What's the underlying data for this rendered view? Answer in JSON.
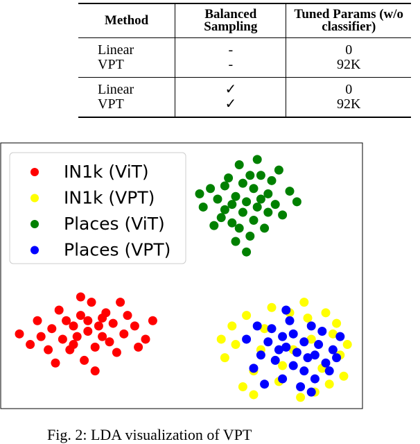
{
  "table": {
    "header": [
      "Method",
      "Balanced Sampling",
      "Tuned Params (w/o classifier)"
    ],
    "rows": [
      [
        "Linear",
        "-",
        "0"
      ],
      [
        "VPT",
        "-",
        "92K"
      ],
      [
        "Linear",
        "✓",
        "0"
      ],
      [
        "VPT",
        "✓",
        "92K"
      ]
    ]
  },
  "chart_data": {
    "type": "scatter",
    "xlim": [
      0,
      100
    ],
    "ylim": [
      0,
      100
    ],
    "legend": "upper left",
    "series": [
      {
        "name": "IN1k (ViT)",
        "color": "#ff0000",
        "x": [
          24,
          20,
          28,
          17,
          31,
          22,
          26,
          14,
          34,
          19,
          29,
          11,
          37,
          23,
          25,
          8,
          40,
          16,
          32,
          21,
          27,
          13,
          35,
          18,
          30,
          24,
          10,
          38,
          26,
          22,
          5,
          42,
          15,
          33,
          20,
          28
        ],
        "y": [
          29,
          31,
          27,
          26,
          32,
          35,
          23,
          30,
          28,
          22,
          36,
          27,
          31,
          18,
          40,
          24,
          26,
          37,
          21,
          27,
          31,
          22,
          35,
          33,
          25,
          33,
          33,
          23,
          14,
          42,
          28,
          33,
          17,
          40,
          24,
          34
        ]
      },
      {
        "name": "IN1k (VPT)",
        "color": "#ffff00",
        "x": [
          81,
          73,
          89,
          65,
          94,
          77,
          85,
          70,
          92,
          62,
          80,
          87,
          75,
          96,
          67,
          83,
          90,
          64,
          95,
          72,
          86,
          78,
          91,
          68,
          84,
          70,
          93,
          61
        ],
        "y": [
          22,
          30,
          15,
          24,
          20,
          10,
          34,
          14,
          28,
          19,
          36,
          6,
          38,
          24,
          8,
          4,
          36,
          31,
          12,
          22,
          26,
          16,
          9,
          35,
          40,
          5,
          32,
          26
        ]
      },
      {
        "name": "Places (ViT)",
        "color": "#008000",
        "x": [
          68,
          65,
          71,
          62,
          74,
          67,
          70,
          60,
          76,
          64,
          72,
          58,
          78,
          66,
          69,
          56,
          80,
          63,
          73,
          67,
          70,
          61,
          75,
          65,
          77,
          59,
          82,
          68,
          71,
          55,
          64,
          72,
          66,
          74,
          62,
          69
        ],
        "y": [
          78,
          80,
          76,
          75,
          81,
          85,
          71,
          79,
          77,
          70,
          88,
          83,
          73,
          92,
          65,
          76,
          82,
          87,
          68,
          74,
          83,
          72,
          86,
          63,
          90,
          69,
          78,
          59,
          94,
          81,
          77,
          79,
          68,
          74,
          84,
          88
        ]
      },
      {
        "name": "Places (VPT)",
        "color": "#0000ff",
        "x": [
          82,
          79,
          85,
          76,
          88,
          81,
          84,
          74,
          90,
          78,
          86,
          72,
          92,
          80,
          83,
          70,
          94,
          75,
          87,
          77,
          89,
          73,
          91,
          81,
          84,
          68,
          93,
          79,
          86,
          71,
          78,
          87
        ],
        "y": [
          21,
          23,
          19,
          18,
          24,
          28,
          14,
          25,
          17,
          11,
          31,
          20,
          22,
          33,
          8,
          15,
          27,
          30,
          11,
          22,
          29,
          9,
          14,
          16,
          25,
          26,
          19,
          37,
          6,
          31,
          27,
          20
        ]
      }
    ]
  },
  "caption": "Fig. 2: LDA visualization of VPT"
}
